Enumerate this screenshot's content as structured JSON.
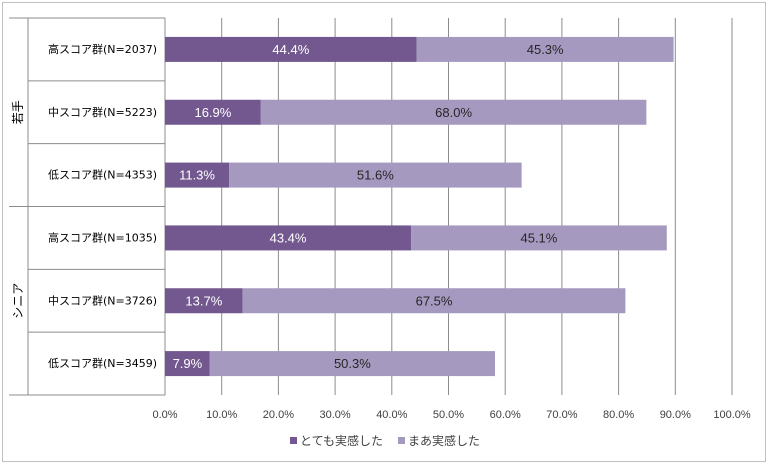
{
  "chart_data": {
    "type": "bar",
    "orientation": "horizontal",
    "stacked": true,
    "xlim": [
      0,
      100
    ],
    "x_ticks": [
      "0.0%",
      "10.0%",
      "20.0%",
      "30.0%",
      "40.0%",
      "50.0%",
      "60.0%",
      "70.0%",
      "80.0%",
      "90.0%",
      "100.0%"
    ],
    "groups": [
      "若手",
      "シニア"
    ],
    "categories": [
      "高スコア群(N=2037)",
      "中スコア群(N=5223)",
      "低スコア群(N=4353)",
      "高スコア群(N=1035)",
      "中スコア群(N=3726)",
      "低スコア群(N=3459)"
    ],
    "series": [
      {
        "name": "とても実感した",
        "color": "#72588f",
        "values": [
          44.4,
          16.9,
          11.3,
          43.4,
          13.7,
          7.9
        ],
        "labels": [
          "44.4%",
          "16.9%",
          "11.3%",
          "43.4%",
          "13.7%",
          "7.9%"
        ]
      },
      {
        "name": "まあ実感した",
        "color": "#a699c0",
        "values": [
          45.3,
          68.0,
          51.6,
          45.1,
          67.5,
          50.3
        ],
        "labels": [
          "45.3%",
          "68.0%",
          "51.6%",
          "45.1%",
          "67.5%",
          "50.3%"
        ]
      }
    ],
    "grid": true,
    "legend_position": "bottom"
  }
}
